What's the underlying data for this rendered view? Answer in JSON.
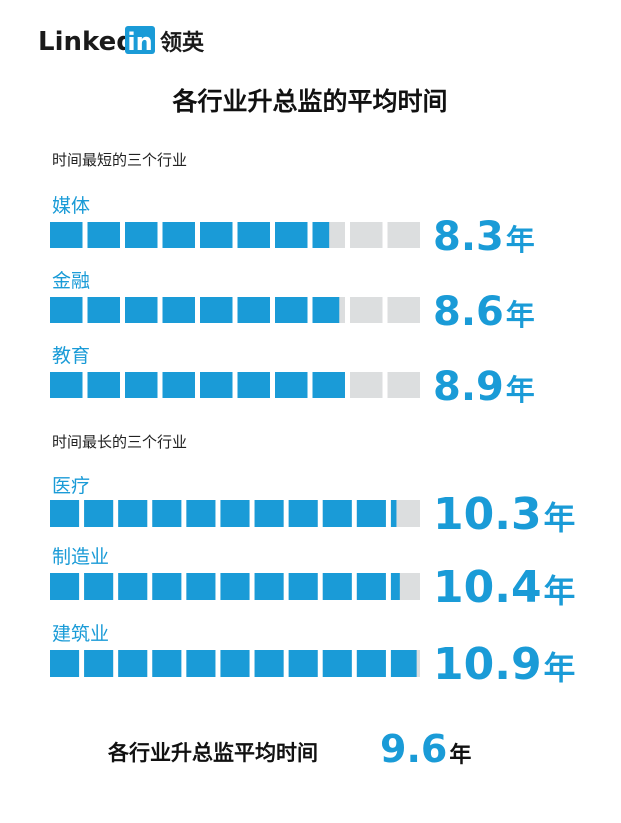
{
  "logo": {
    "word": "Linked",
    "badge": "in",
    "cn": "领英"
  },
  "title": "各行业升总监的平均时间",
  "unit": "年",
  "chart_data": [
    {
      "type": "bar",
      "subtitle": "时间最短的三个行业",
      "categories": [
        "媒体",
        "金融",
        "教育"
      ],
      "values": [
        8.3,
        8.6,
        8.9
      ],
      "color": "#1a9bd7",
      "track_color": "#dcdedf",
      "xlim": [
        0,
        11
      ]
    },
    {
      "type": "bar",
      "subtitle": "时间最长的三个行业",
      "categories": [
        "医疗",
        "制造业",
        "建筑业"
      ],
      "values": [
        10.3,
        10.4,
        10.9
      ],
      "color": "#1a9bd7",
      "track_color": "#dcdedf",
      "xlim": [
        0,
        11
      ]
    }
  ],
  "average": {
    "label": "各行业升总监平均时间",
    "value": 9.6
  }
}
